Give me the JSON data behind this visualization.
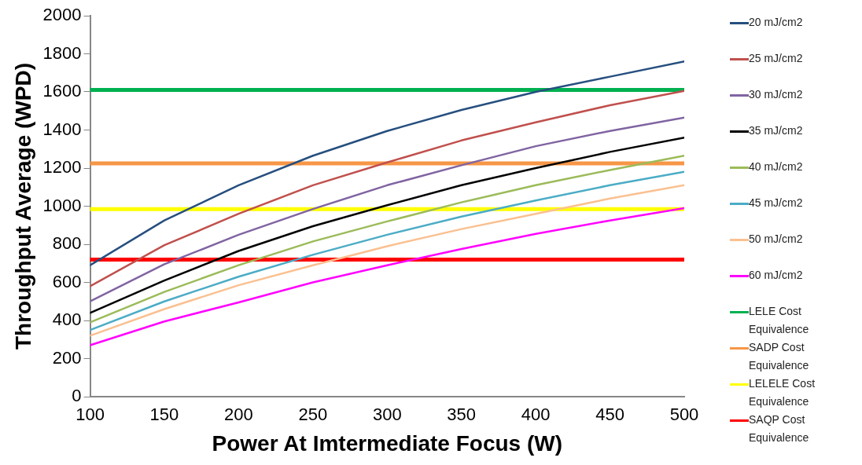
{
  "chart_data": {
    "type": "line",
    "xlabel": "Power At Imtermediate Focus (W)",
    "ylabel": "Throughput Average (WPD)",
    "x": [
      100,
      150,
      200,
      250,
      300,
      350,
      400,
      450,
      500
    ],
    "xlim": [
      100,
      500
    ],
    "xticks": [
      100,
      150,
      200,
      250,
      300,
      350,
      400,
      450,
      500
    ],
    "ylim": [
      0,
      2000
    ],
    "yticks": [
      0,
      200,
      400,
      600,
      800,
      1000,
      1200,
      1400,
      1600,
      1800,
      2000
    ],
    "grid": false,
    "legend": "right",
    "marker": "none",
    "line_style": "solid",
    "series": [
      {
        "name": "20 mJ/cm2",
        "color": "#264f7f",
        "values": [
          690,
          925,
          1110,
          1265,
          1395,
          1505,
          1600,
          1680,
          1760
        ]
      },
      {
        "name": "25 mJ/cm2",
        "color": "#c0504d",
        "values": [
          580,
          795,
          960,
          1110,
          1230,
          1345,
          1440,
          1530,
          1605
        ]
      },
      {
        "name": "30 mJ/cm2",
        "color": "#8064a2",
        "values": [
          500,
          695,
          850,
          985,
          1110,
          1215,
          1315,
          1395,
          1465
        ]
      },
      {
        "name": "35 mJ/cm2",
        "color": "#000000",
        "values": [
          440,
          610,
          765,
          895,
          1005,
          1110,
          1200,
          1285,
          1360
        ]
      },
      {
        "name": "40 mJ/cm2",
        "color": "#9bbb59",
        "values": [
          390,
          550,
          690,
          815,
          920,
          1020,
          1110,
          1190,
          1265
        ]
      },
      {
        "name": "45 mJ/cm2",
        "color": "#4bacc6",
        "values": [
          350,
          500,
          630,
          745,
          850,
          945,
          1030,
          1110,
          1180
        ]
      },
      {
        "name": "50 mJ/cm2",
        "color": "#fac090",
        "values": [
          320,
          460,
          585,
          690,
          790,
          880,
          960,
          1040,
          1110
        ]
      },
      {
        "name": "60 mJ/cm2",
        "color": "#ff00ff",
        "values": [
          270,
          395,
          495,
          600,
          690,
          775,
          855,
          925,
          990
        ]
      },
      {
        "name": "LELE Cost Equivalence",
        "color": "#00b050",
        "values": [
          1610,
          1610,
          1610,
          1610,
          1610,
          1610,
          1610,
          1610,
          1610
        ]
      },
      {
        "name": "SADP Cost Equivalence",
        "color": "#f79646",
        "values": [
          1225,
          1225,
          1225,
          1225,
          1225,
          1225,
          1225,
          1225,
          1225
        ]
      },
      {
        "name": "LELELE Cost Equivalence",
        "color": "#ffff00",
        "values": [
          985,
          985,
          985,
          985,
          985,
          985,
          985,
          985,
          985
        ]
      },
      {
        "name": "SAQP Cost Equivalence",
        "color": "#ff0000",
        "values": [
          720,
          720,
          720,
          720,
          720,
          720,
          720,
          720,
          720
        ]
      }
    ]
  }
}
